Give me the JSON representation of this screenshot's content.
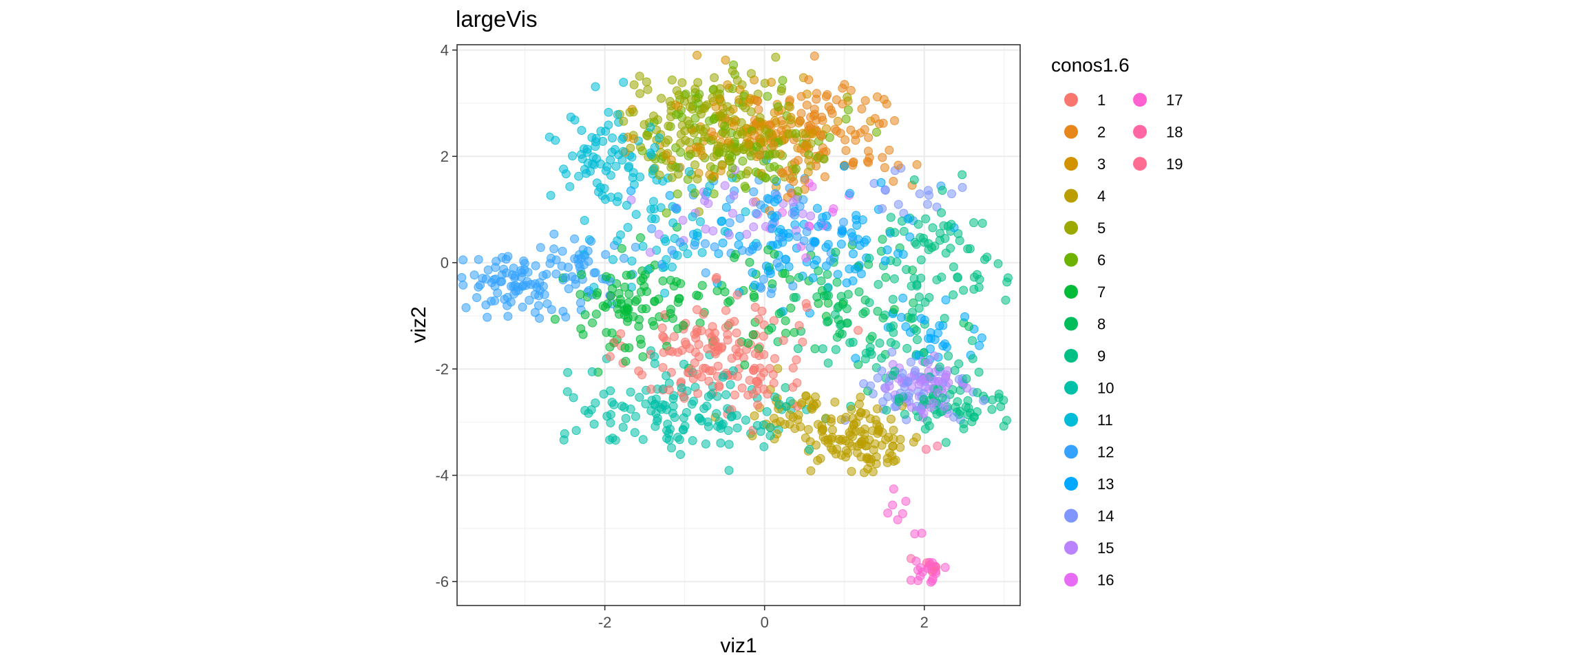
{
  "chart_data": {
    "type": "scatter",
    "title": "largeVis",
    "xlabel": "viz1",
    "ylabel": "viz2",
    "xlim": [
      -3.85,
      3.2
    ],
    "ylim": [
      -6.45,
      4.1
    ],
    "x_ticks": [
      -2,
      0,
      2
    ],
    "y_ticks": [
      4,
      2,
      0,
      -2,
      -4,
      -6
    ],
    "x_tick_labels": [
      "-2",
      "0",
      "2"
    ],
    "y_tick_labels": [
      "4",
      "2",
      "0",
      "-2",
      "-4",
      "-6"
    ],
    "grid": true,
    "legend_title": "conos1.6",
    "legend_position": "right",
    "groups": [
      {
        "label": "1",
        "color": "#F8766D",
        "clusters": [
          {
            "cx": -0.6,
            "cy": -1.7,
            "sx": 0.55,
            "sy": 0.55,
            "n": 150
          }
        ]
      },
      {
        "label": "2",
        "color": "#E7861B",
        "clusters": [
          {
            "cx": 0.7,
            "cy": 2.4,
            "sx": 0.55,
            "sy": 0.55,
            "n": 130
          }
        ]
      },
      {
        "label": "3",
        "color": "#D39200",
        "clusters": [
          {
            "cx": -0.2,
            "cy": 2.5,
            "sx": 0.6,
            "sy": 0.5,
            "n": 110
          }
        ]
      },
      {
        "label": "4",
        "color": "#BA9E00",
        "clusters": [
          {
            "cx": 1.2,
            "cy": -3.3,
            "sx": 0.4,
            "sy": 0.35,
            "n": 110
          },
          {
            "cx": 0.4,
            "cy": -2.9,
            "sx": 0.35,
            "sy": 0.3,
            "n": 40
          }
        ]
      },
      {
        "label": "5",
        "color": "#9AA800",
        "clusters": [
          {
            "cx": -0.7,
            "cy": 2.6,
            "sx": 0.6,
            "sy": 0.5,
            "n": 150
          }
        ]
      },
      {
        "label": "6",
        "color": "#6EB200",
        "clusters": [
          {
            "cx": -0.3,
            "cy": 2.3,
            "sx": 0.6,
            "sy": 0.55,
            "n": 120
          }
        ]
      },
      {
        "label": "7",
        "color": "#00BA38",
        "clusters": [
          {
            "cx": -1.7,
            "cy": -0.8,
            "sx": 0.4,
            "sy": 0.45,
            "n": 80
          },
          {
            "cx": -0.2,
            "cy": -0.8,
            "sx": 0.7,
            "sy": 0.6,
            "n": 60
          }
        ]
      },
      {
        "label": "8",
        "color": "#00BD5C",
        "clusters": [
          {
            "cx": 1.1,
            "cy": -0.8,
            "sx": 0.5,
            "sy": 0.6,
            "n": 60
          }
        ]
      },
      {
        "label": "9",
        "color": "#00C085",
        "clusters": [
          {
            "cx": 2.2,
            "cy": 0.0,
            "sx": 0.4,
            "sy": 0.7,
            "n": 80
          },
          {
            "cx": 2.3,
            "cy": -2.7,
            "sx": 0.35,
            "sy": 0.3,
            "n": 60
          },
          {
            "cx": 1.5,
            "cy": -1.5,
            "sx": 0.5,
            "sy": 0.5,
            "n": 40
          }
        ]
      },
      {
        "label": "10",
        "color": "#00C0A8",
        "clusters": [
          {
            "cx": -1.3,
            "cy": -2.7,
            "sx": 0.6,
            "sy": 0.4,
            "n": 100
          },
          {
            "cx": -0.2,
            "cy": -3.0,
            "sx": 0.5,
            "sy": 0.3,
            "n": 40
          }
        ]
      },
      {
        "label": "11",
        "color": "#00BCD6",
        "clusters": [
          {
            "cx": -2.0,
            "cy": 1.9,
            "sx": 0.35,
            "sy": 0.45,
            "n": 70
          },
          {
            "cx": -1.3,
            "cy": 0.8,
            "sx": 0.6,
            "sy": 0.6,
            "n": 60
          }
        ]
      },
      {
        "label": "12",
        "color": "#35A2FF",
        "clusters": [
          {
            "cx": -3.1,
            "cy": -0.4,
            "sx": 0.35,
            "sy": 0.25,
            "n": 80
          },
          {
            "cx": -2.4,
            "cy": -0.2,
            "sx": 0.45,
            "sy": 0.4,
            "n": 50
          },
          {
            "cx": 0.0,
            "cy": 0.6,
            "sx": 0.7,
            "sy": 0.6,
            "n": 60
          }
        ]
      },
      {
        "label": "13",
        "color": "#00A9FF",
        "clusters": [
          {
            "cx": 0.5,
            "cy": 0.4,
            "sx": 0.8,
            "sy": 0.6,
            "n": 100
          },
          {
            "cx": 2.1,
            "cy": -1.4,
            "sx": 0.3,
            "sy": 0.4,
            "n": 30
          }
        ]
      },
      {
        "label": "14",
        "color": "#7F96FF",
        "clusters": [
          {
            "cx": 1.8,
            "cy": -2.4,
            "sx": 0.4,
            "sy": 0.35,
            "n": 50
          },
          {
            "cx": 1.9,
            "cy": 1.3,
            "sx": 0.3,
            "sy": 0.3,
            "n": 15
          }
        ]
      },
      {
        "label": "15",
        "color": "#B983FF",
        "clusters": [
          {
            "cx": 2.0,
            "cy": -2.4,
            "sx": 0.3,
            "sy": 0.3,
            "n": 60
          },
          {
            "cx": -0.3,
            "cy": 0.9,
            "sx": 0.6,
            "sy": 0.4,
            "n": 30
          }
        ]
      },
      {
        "label": "16",
        "color": "#E76BF3",
        "clusters": [
          {
            "cx": 0.6,
            "cy": 0.9,
            "sx": 0.5,
            "sy": 0.4,
            "n": 15
          }
        ]
      },
      {
        "label": "17",
        "color": "#FD61D1",
        "clusters": [
          {
            "cx": 2.0,
            "cy": -5.8,
            "sx": 0.1,
            "sy": 0.15,
            "n": 20
          },
          {
            "cx": 1.65,
            "cy": -4.8,
            "sx": 0.12,
            "sy": 0.25,
            "n": 8
          }
        ]
      },
      {
        "label": "18",
        "color": "#FF67A4",
        "clusters": [
          {
            "cx": 2.05,
            "cy": -5.7,
            "sx": 0.08,
            "sy": 0.1,
            "n": 6
          }
        ]
      },
      {
        "label": "19",
        "color": "#FF6C91",
        "clusters": [
          {
            "cx": 2.1,
            "cy": -3.5,
            "sx": 0.05,
            "sy": 0.05,
            "n": 2
          }
        ]
      }
    ]
  }
}
